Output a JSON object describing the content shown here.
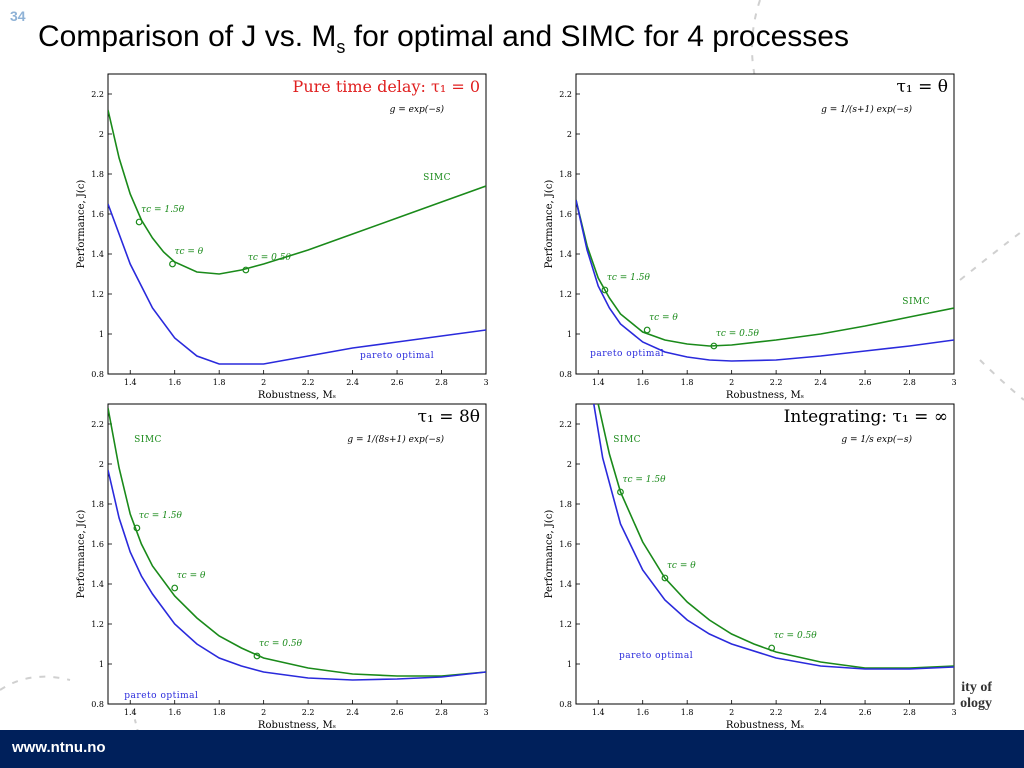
{
  "slide": {
    "number": "34",
    "title_main": "Comparison of J vs. M",
    "title_sub": "s",
    "title_rest": " for optimal and SIMC for 4 processes",
    "footer_url": "www.ntnu.no",
    "logo_fragment_line1": "ity of",
    "logo_fragment_line2": "ology"
  },
  "colors": {
    "simc": "#1a8a1a",
    "pareto": "#2a2adc",
    "accent_red": "#e02020",
    "footer": "#00205b"
  },
  "chart_data": [
    {
      "type": "line",
      "title": "Pure time delay: τ₁ = 0",
      "subtitle": "g = exp(−s)",
      "xlabel": "Robustness, Mₛ",
      "ylabel": "Performance, J(c)",
      "xlim": [
        1.3,
        3.0
      ],
      "ylim": [
        0.8,
        2.3
      ],
      "xticks": [
        "1.4",
        "1.6",
        "1.8",
        "2",
        "2.2",
        "2.4",
        "2.6",
        "2.8",
        "3"
      ],
      "yticks": [
        "0.8",
        "1",
        "1.2",
        "1.4",
        "1.6",
        "1.8",
        "2",
        "2.2"
      ],
      "series": [
        {
          "name": "SIMC",
          "x": [
            1.3,
            1.35,
            1.4,
            1.45,
            1.5,
            1.55,
            1.6,
            1.7,
            1.8,
            1.9,
            2.0,
            2.2,
            2.4,
            2.6,
            2.8,
            3.0
          ],
          "values": [
            2.12,
            1.88,
            1.7,
            1.57,
            1.48,
            1.41,
            1.36,
            1.31,
            1.3,
            1.32,
            1.35,
            1.42,
            1.5,
            1.58,
            1.66,
            1.74
          ]
        },
        {
          "name": "pareto optimal",
          "x": [
            1.3,
            1.35,
            1.4,
            1.5,
            1.6,
            1.7,
            1.8,
            2.0,
            2.2,
            2.4,
            2.6,
            2.8,
            3.0
          ],
          "values": [
            1.65,
            1.5,
            1.35,
            1.13,
            0.98,
            0.89,
            0.85,
            0.85,
            0.89,
            0.93,
            0.96,
            0.99,
            1.02
          ]
        }
      ],
      "markers": [
        {
          "label": "τc = 1.5θ",
          "x": 1.44,
          "y": 1.56
        },
        {
          "label": "τc = θ",
          "x": 1.59,
          "y": 1.35
        },
        {
          "label": "τc = 0.5θ",
          "x": 1.92,
          "y": 1.32
        }
      ],
      "series_labels": [
        {
          "text": "SIMC",
          "x": 2.78,
          "y": 1.77
        },
        {
          "text": "pareto optimal",
          "x": 2.6,
          "y": 0.88
        }
      ]
    },
    {
      "type": "line",
      "title": "τ₁ = θ",
      "subtitle": "g = 1/(s+1) exp(−s)",
      "xlabel": "Robustness, Mₛ",
      "ylabel": "Performance, J(c)",
      "xlim": [
        1.3,
        3.0
      ],
      "ylim": [
        0.8,
        2.3
      ],
      "xticks": [
        "1.4",
        "1.6",
        "1.8",
        "2",
        "2.2",
        "2.4",
        "2.6",
        "2.8",
        "3"
      ],
      "yticks": [
        "0.8",
        "1",
        "1.2",
        "1.4",
        "1.6",
        "1.8",
        "2",
        "2.2"
      ],
      "series": [
        {
          "name": "SIMC",
          "x": [
            1.3,
            1.35,
            1.4,
            1.45,
            1.5,
            1.6,
            1.7,
            1.8,
            1.9,
            2.0,
            2.2,
            2.4,
            2.6,
            2.8,
            3.0
          ],
          "values": [
            1.67,
            1.44,
            1.28,
            1.18,
            1.1,
            1.01,
            0.97,
            0.95,
            0.94,
            0.945,
            0.97,
            1.0,
            1.04,
            1.085,
            1.13
          ]
        },
        {
          "name": "pareto optimal",
          "x": [
            1.3,
            1.35,
            1.4,
            1.45,
            1.5,
            1.6,
            1.7,
            1.8,
            1.9,
            2.0,
            2.2,
            2.4,
            2.6,
            2.8,
            3.0
          ],
          "values": [
            1.67,
            1.42,
            1.24,
            1.13,
            1.05,
            0.96,
            0.91,
            0.885,
            0.87,
            0.865,
            0.87,
            0.89,
            0.915,
            0.94,
            0.97
          ]
        }
      ],
      "markers": [
        {
          "label": "τc = 1.5θ",
          "x": 1.43,
          "y": 1.22
        },
        {
          "label": "τc = θ",
          "x": 1.62,
          "y": 1.02
        },
        {
          "label": "τc = 0.5θ",
          "x": 1.92,
          "y": 0.94
        }
      ],
      "series_labels": [
        {
          "text": "SIMC",
          "x": 2.83,
          "y": 1.15
        },
        {
          "text": "pareto optimal",
          "x": 1.53,
          "y": 0.89
        }
      ]
    },
    {
      "type": "line",
      "title": "τ₁ = 8θ",
      "subtitle": "g = 1/(8s+1) exp(−s)",
      "xlabel": "Robustness, Mₛ",
      "ylabel": "Performance, J(c)",
      "xlim": [
        1.3,
        3.0
      ],
      "ylim": [
        0.8,
        2.3
      ],
      "xticks": [
        "1.4",
        "1.6",
        "1.8",
        "2",
        "2.2",
        "2.4",
        "2.6",
        "2.8",
        "3"
      ],
      "yticks": [
        "0.8",
        "1",
        "1.2",
        "1.4",
        "1.6",
        "1.8",
        "2",
        "2.2"
      ],
      "series": [
        {
          "name": "SIMC",
          "x": [
            1.3,
            1.35,
            1.4,
            1.45,
            1.5,
            1.6,
            1.7,
            1.8,
            1.9,
            2.0,
            2.2,
            2.4,
            2.6,
            2.8,
            3.0
          ],
          "values": [
            2.28,
            1.98,
            1.75,
            1.6,
            1.49,
            1.34,
            1.23,
            1.14,
            1.08,
            1.03,
            0.98,
            0.95,
            0.94,
            0.94,
            0.96
          ]
        },
        {
          "name": "pareto optimal",
          "x": [
            1.3,
            1.35,
            1.4,
            1.45,
            1.5,
            1.6,
            1.7,
            1.8,
            1.9,
            2.0,
            2.2,
            2.4,
            2.6,
            2.8,
            3.0
          ],
          "values": [
            1.97,
            1.73,
            1.56,
            1.44,
            1.35,
            1.2,
            1.1,
            1.03,
            0.99,
            0.96,
            0.93,
            0.92,
            0.925,
            0.935,
            0.96
          ]
        }
      ],
      "markers": [
        {
          "label": "τc = 1.5θ",
          "x": 1.43,
          "y": 1.68
        },
        {
          "label": "τc = θ",
          "x": 1.6,
          "y": 1.38
        },
        {
          "label": "τc = 0.5θ",
          "x": 1.97,
          "y": 1.04
        }
      ],
      "series_labels": [
        {
          "text": "SIMC",
          "x": 1.48,
          "y": 2.11
        },
        {
          "text": "pareto optimal",
          "x": 1.54,
          "y": 0.83
        }
      ]
    },
    {
      "type": "line",
      "title": "Integrating: τ₁ = ∞",
      "subtitle": "g = 1/s exp(−s)",
      "xlabel": "Robustness, Mₛ",
      "ylabel": "Performance, J(c)",
      "xlim": [
        1.3,
        3.0
      ],
      "ylim": [
        0.8,
        2.3
      ],
      "xticks": [
        "1.4",
        "1.6",
        "1.8",
        "2",
        "2.2",
        "2.4",
        "2.6",
        "2.8",
        "3"
      ],
      "yticks": [
        "0.8",
        "1",
        "1.2",
        "1.4",
        "1.6",
        "1.8",
        "2",
        "2.2"
      ],
      "series": [
        {
          "name": "SIMC",
          "x": [
            1.4,
            1.45,
            1.5,
            1.6,
            1.7,
            1.8,
            1.9,
            2.0,
            2.1,
            2.2,
            2.4,
            2.6,
            2.8,
            3.0
          ],
          "values": [
            2.3,
            2.05,
            1.86,
            1.61,
            1.43,
            1.31,
            1.22,
            1.15,
            1.1,
            1.06,
            1.01,
            0.98,
            0.98,
            0.99
          ]
        },
        {
          "name": "pareto optimal",
          "x": [
            1.38,
            1.42,
            1.5,
            1.6,
            1.7,
            1.8,
            1.9,
            2.0,
            2.2,
            2.4,
            2.6,
            2.8,
            3.0
          ],
          "values": [
            2.3,
            2.03,
            1.7,
            1.47,
            1.32,
            1.22,
            1.15,
            1.1,
            1.03,
            0.99,
            0.975,
            0.975,
            0.985
          ]
        }
      ],
      "markers": [
        {
          "label": "τc = 1.5θ",
          "x": 1.5,
          "y": 1.86
        },
        {
          "label": "τc = θ",
          "x": 1.7,
          "y": 1.43
        },
        {
          "label": "τc = 0.5θ",
          "x": 2.18,
          "y": 1.08
        }
      ],
      "series_labels": [
        {
          "text": "SIMC",
          "x": 1.53,
          "y": 2.11
        },
        {
          "text": "pareto optimal",
          "x": 1.66,
          "y": 1.03
        }
      ]
    }
  ]
}
